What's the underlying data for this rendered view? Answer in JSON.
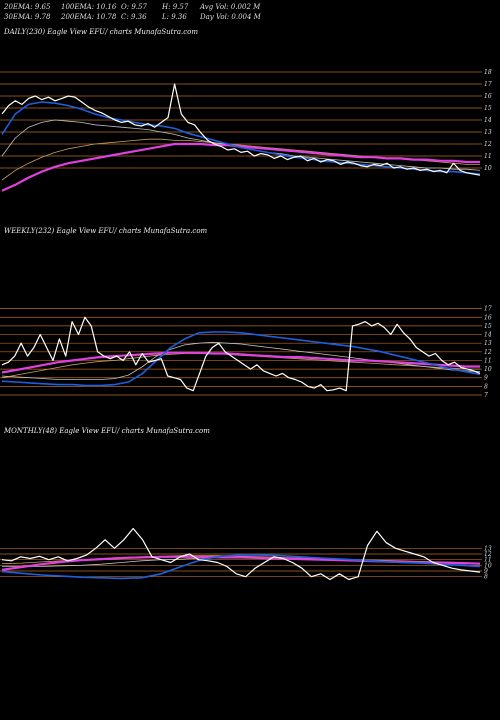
{
  "header": {
    "ema20": "20EMA: 9.65",
    "ema100": "100EMA: 10.16",
    "open": "O: 9.57",
    "high": "H: 9.57",
    "avgvol": "Avg Vol: 0.002  M",
    "ema30": "30EMA: 9.78",
    "ema200": "200EMA: 10.78",
    "close": "C: 9.36",
    "low": "L: 9.36",
    "dayvol": "Day Vol: 0.004  M"
  },
  "colors": {
    "background": "#000000",
    "price": "#ffffff",
    "ema_fast": "#1e5fe0",
    "ema_slow": "#e040e0",
    "ema_mid": "#c0c0c0",
    "ema_long": "#c8a060",
    "grid": "#b8691e"
  },
  "chart_data": [
    {
      "type": "line",
      "title": "DAILY(230) Eagle  View  EFU/ charts MunafaSutra.com",
      "ylim": [
        8,
        19
      ],
      "ticks": [
        18,
        17,
        16,
        15,
        14,
        13,
        12,
        11,
        10
      ],
      "grid": true,
      "series": [
        {
          "role": "price",
          "values": [
            14.5,
            15.2,
            15.6,
            15.3,
            15.8,
            16.0,
            15.7,
            15.9,
            15.6,
            15.8,
            16.0,
            15.9,
            15.5,
            15.1,
            14.8,
            14.6,
            14.3,
            14.0,
            13.8,
            13.9,
            13.6,
            13.5,
            13.7,
            13.4,
            13.8,
            14.2,
            17.0,
            14.5,
            13.8,
            13.6,
            12.9,
            12.3,
            12.0,
            11.8,
            11.5,
            11.6,
            11.3,
            11.4,
            11.0,
            11.2,
            11.1,
            10.8,
            11.0,
            10.7,
            10.9,
            11.0,
            10.6,
            10.8,
            10.5,
            10.7,
            10.6,
            10.3,
            10.5,
            10.4,
            10.2,
            10.1,
            10.3,
            10.2,
            10.4,
            10.0,
            10.1,
            9.9,
            10.0,
            9.8,
            9.9,
            9.7,
            9.8,
            9.6,
            10.4,
            9.8,
            9.6,
            9.5,
            9.4
          ]
        },
        {
          "role": "ema_fast",
          "values": [
            12.8,
            14.5,
            15.3,
            15.5,
            15.4,
            15.2,
            14.9,
            14.5,
            14.2,
            14.0,
            13.8,
            13.6,
            13.5,
            13.3,
            12.9,
            12.6,
            12.3,
            12.0,
            11.7,
            11.5,
            11.3,
            11.1,
            10.9,
            10.8,
            10.6,
            10.5,
            10.4,
            10.3,
            10.2,
            10.1,
            10.0,
            9.9,
            9.8,
            9.7,
            9.7,
            9.6,
            9.5
          ]
        },
        {
          "role": "ema_mid",
          "values": [
            11.0,
            12.5,
            13.4,
            13.8,
            14.0,
            13.9,
            13.8,
            13.6,
            13.5,
            13.4,
            13.3,
            13.2,
            13.0,
            12.8,
            12.5,
            12.3,
            12.1,
            11.9,
            11.7,
            11.5,
            11.3,
            11.2,
            11.0,
            10.9,
            10.8,
            10.7,
            10.6,
            10.5,
            10.4,
            10.3,
            10.2,
            10.1,
            10.0,
            10.0,
            9.9,
            9.9,
            9.8
          ]
        },
        {
          "role": "ema_long",
          "values": [
            9.0,
            9.8,
            10.4,
            10.9,
            11.3,
            11.6,
            11.8,
            12.0,
            12.1,
            12.2,
            12.3,
            12.4,
            12.4,
            12.3,
            12.3,
            12.2,
            12.1,
            12.0,
            11.9,
            11.8,
            11.7,
            11.6,
            11.5,
            11.4,
            11.3,
            11.2,
            11.1,
            11.0,
            10.9,
            10.8,
            10.8,
            10.7,
            10.6,
            10.5,
            10.4,
            10.3,
            10.3
          ]
        },
        {
          "role": "ema_slow",
          "values": [
            8.1,
            8.6,
            9.2,
            9.7,
            10.1,
            10.4,
            10.6,
            10.8,
            11.0,
            11.2,
            11.4,
            11.6,
            11.8,
            12.0,
            12.0,
            12.0,
            11.9,
            11.9,
            11.8,
            11.7,
            11.6,
            11.5,
            11.4,
            11.3,
            11.2,
            11.1,
            11.0,
            10.9,
            10.9,
            10.8,
            10.8,
            10.7,
            10.7,
            10.6,
            10.6,
            10.5,
            10.5
          ]
        }
      ]
    },
    {
      "type": "line",
      "title": "WEEKLY(232) Eagle  View  EFU/ charts MunafaSutra.com",
      "ylim": [
        7,
        18
      ],
      "ticks": [
        17,
        16,
        15,
        14,
        13,
        12,
        11,
        10,
        9,
        8,
        7
      ],
      "grid": true,
      "series": [
        {
          "role": "price",
          "values": [
            10.5,
            10.8,
            11.5,
            13.0,
            11.5,
            12.5,
            14.0,
            12.5,
            11.0,
            13.5,
            11.5,
            15.5,
            14.0,
            16.0,
            15.0,
            12.0,
            11.5,
            11.2,
            11.5,
            11.0,
            12.0,
            10.5,
            11.8,
            10.8,
            11.0,
            11.2,
            9.2,
            9.0,
            8.8,
            7.8,
            7.5,
            9.5,
            11.5,
            12.5,
            13.0,
            12.0,
            11.5,
            11.0,
            10.5,
            10.0,
            10.5,
            9.8,
            9.5,
            9.2,
            9.5,
            9.0,
            8.8,
            8.5,
            8.0,
            7.8,
            8.2,
            7.5,
            7.6,
            7.8,
            7.5,
            15.0,
            15.2,
            15.5,
            15.0,
            15.3,
            14.8,
            14.0,
            15.2,
            14.2,
            13.5,
            12.5,
            12.0,
            11.5,
            11.8,
            11.0,
            10.5,
            10.8,
            10.2,
            10.0,
            9.8,
            9.5
          ]
        },
        {
          "role": "ema_fast",
          "values": [
            8.6,
            8.5,
            8.4,
            8.3,
            8.2,
            8.2,
            8.1,
            8.1,
            8.2,
            8.5,
            9.5,
            11.0,
            12.5,
            13.5,
            14.2,
            14.3,
            14.3,
            14.2,
            14.0,
            13.8,
            13.6,
            13.4,
            13.2,
            13.0,
            12.8,
            12.6,
            12.3,
            12.0,
            11.6,
            11.2,
            10.8,
            10.4,
            10.0,
            9.7,
            9.4
          ]
        },
        {
          "role": "ema_mid",
          "values": [
            9.2,
            9.1,
            9.0,
            8.9,
            8.8,
            8.8,
            8.8,
            8.8,
            8.9,
            9.3,
            10.3,
            11.5,
            12.3,
            12.8,
            13.0,
            13.1,
            13.0,
            12.9,
            12.7,
            12.5,
            12.3,
            12.1,
            11.9,
            11.7,
            11.5,
            11.3,
            11.1,
            10.9,
            10.7,
            10.5,
            10.3,
            10.1,
            9.9,
            9.8,
            9.7
          ]
        },
        {
          "role": "ema_long",
          "values": [
            9.0,
            9.3,
            9.6,
            9.9,
            10.2,
            10.5,
            10.7,
            10.9,
            11.0,
            11.2,
            11.4,
            11.6,
            11.7,
            11.8,
            11.8,
            11.8,
            11.7,
            11.6,
            11.5,
            11.4,
            11.3,
            11.2,
            11.1,
            11.0,
            10.9,
            10.8,
            10.7,
            10.6,
            10.5,
            10.4,
            10.3,
            10.2,
            10.1,
            10.0,
            10.0
          ]
        },
        {
          "role": "ema_slow",
          "values": [
            9.6,
            9.9,
            10.2,
            10.5,
            10.8,
            11.0,
            11.2,
            11.4,
            11.5,
            11.6,
            11.7,
            11.8,
            11.9,
            11.9,
            11.9,
            11.8,
            11.8,
            11.7,
            11.6,
            11.5,
            11.4,
            11.4,
            11.3,
            11.2,
            11.1,
            11.0,
            11.0,
            10.9,
            10.8,
            10.7,
            10.6,
            10.5,
            10.4,
            10.3,
            10.3
          ]
        }
      ]
    },
    {
      "type": "line",
      "title": "MONTHLY(48) Eagle  View  EFU/ charts MunafaSutra.com",
      "ylim": [
        3,
        18
      ],
      "ticks": [
        13,
        12,
        11,
        10,
        9,
        8
      ],
      "grid": true,
      "series": [
        {
          "role": "price",
          "values": [
            11.0,
            10.8,
            11.5,
            11.2,
            11.6,
            11.0,
            11.5,
            10.8,
            11.2,
            11.8,
            13.0,
            14.5,
            13.0,
            14.5,
            16.5,
            14.5,
            11.5,
            11.0,
            10.5,
            11.5,
            12.0,
            11.0,
            10.8,
            10.5,
            9.8,
            8.5,
            8.0,
            9.5,
            10.5,
            11.5,
            11.2,
            10.5,
            9.5,
            8.0,
            8.5,
            7.5,
            8.5,
            7.5,
            8.0,
            13.5,
            16.0,
            14.0,
            13.0,
            12.5,
            12.0,
            11.5,
            10.5,
            10.0,
            9.5,
            9.2,
            9.0,
            8.8
          ]
        },
        {
          "role": "ema_fast",
          "values": [
            8.9,
            8.6,
            8.3,
            8.1,
            7.9,
            7.8,
            7.7,
            7.8,
            8.5,
            9.8,
            11.0,
            11.6,
            11.8,
            11.8,
            11.7,
            11.5,
            11.3,
            11.1,
            10.9,
            10.7,
            10.5,
            10.4,
            10.2,
            10.0,
            9.8
          ]
        },
        {
          "role": "ema_mid",
          "values": [
            9.8,
            9.8,
            9.8,
            9.9,
            10.0,
            10.2,
            10.5,
            10.8,
            11.0,
            11.1,
            11.3,
            11.4,
            11.4,
            11.3,
            11.2,
            11.1,
            11.0,
            10.9,
            10.8,
            10.7,
            10.6,
            10.5,
            10.4,
            10.3,
            10.2
          ]
        },
        {
          "role": "ema_long",
          "values": [
            10.3,
            10.4,
            10.6,
            10.8,
            11.0,
            11.2,
            11.4,
            11.5,
            11.6,
            11.7,
            11.7,
            11.7,
            11.6,
            11.5,
            11.4,
            11.3,
            11.2,
            11.1,
            11.0,
            10.9,
            10.8,
            10.7,
            10.6,
            10.5,
            10.4
          ]
        },
        {
          "role": "ema_slow",
          "values": [
            9.2,
            9.7,
            10.2,
            10.6,
            10.9,
            11.1,
            11.3,
            11.4,
            11.5,
            11.5,
            11.5,
            11.4,
            11.4,
            11.3,
            11.2,
            11.1,
            11.0,
            10.9,
            10.8,
            10.7,
            10.6,
            10.5,
            10.5,
            10.4,
            10.3
          ]
        }
      ]
    }
  ]
}
